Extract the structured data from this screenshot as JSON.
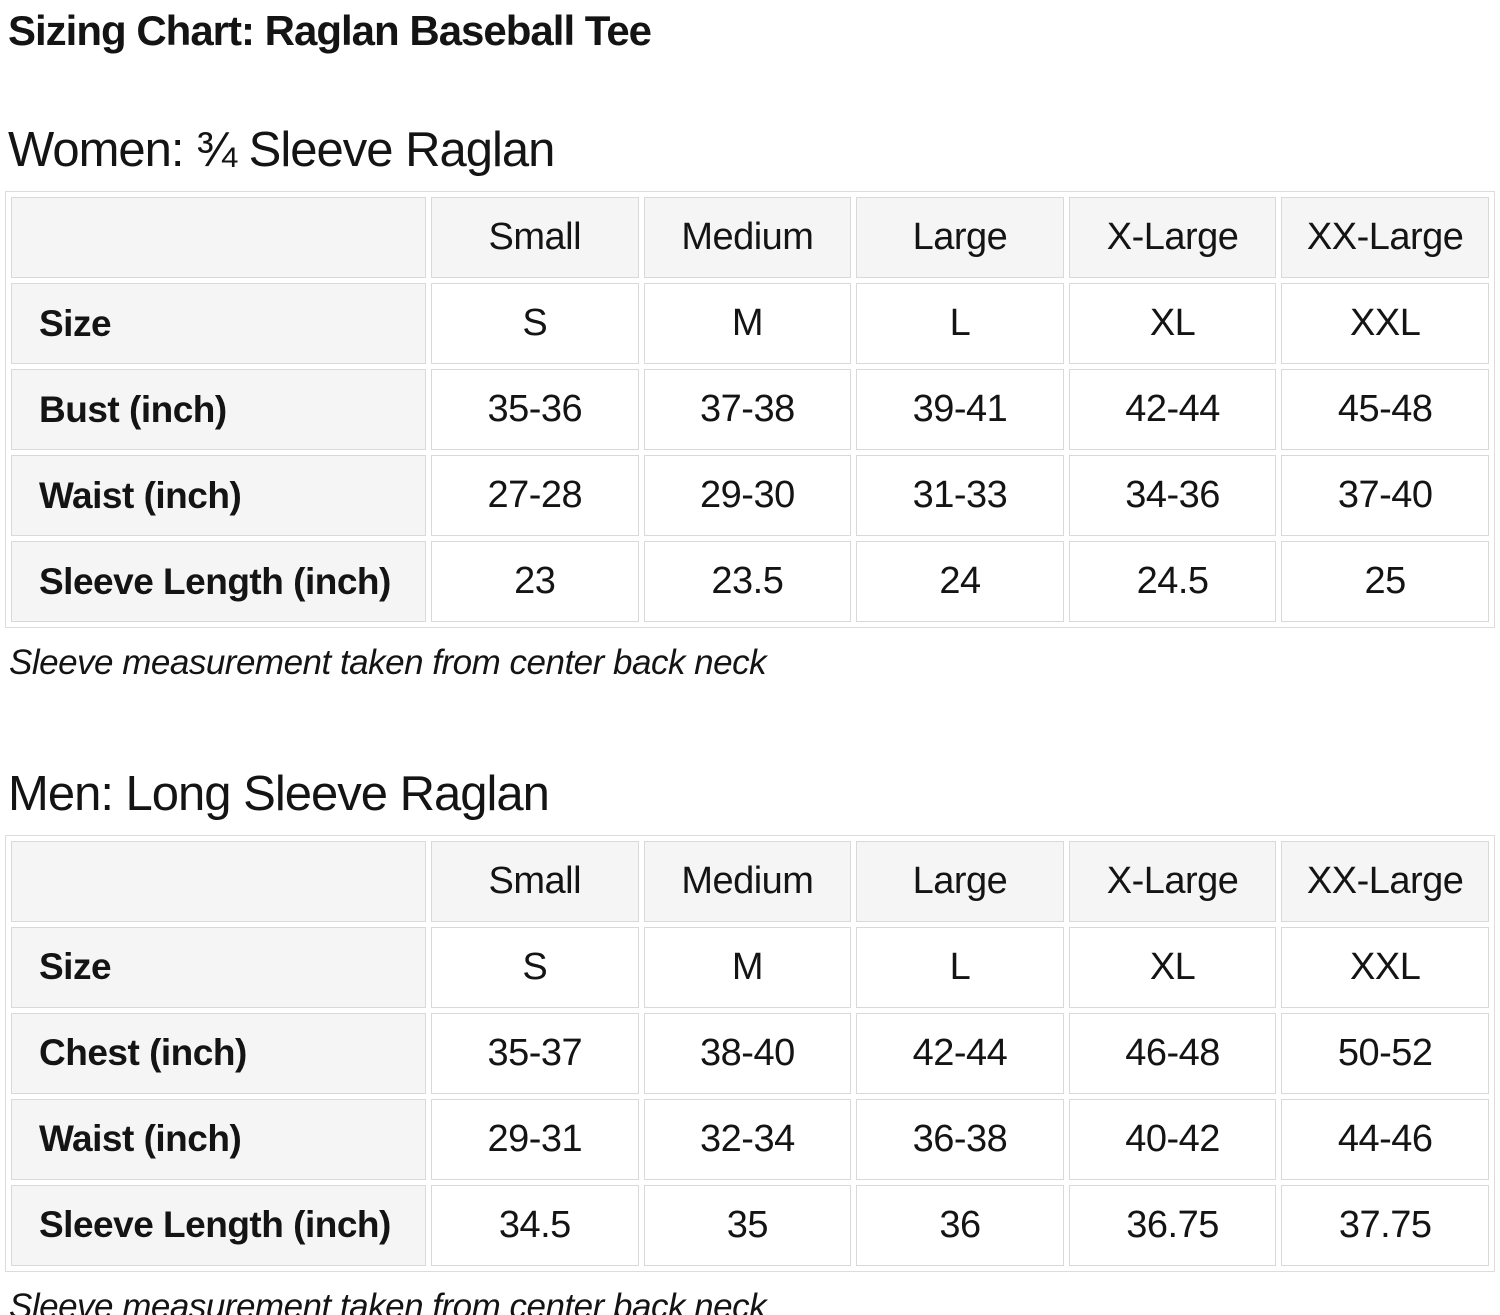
{
  "page": {
    "title": "Sizing Chart: Raglan Baseball Tee"
  },
  "colors": {
    "page_bg": "#ffffff",
    "text": "#141414",
    "header_cell_bg": "#f6f5f5",
    "cell_border": "#d9d9d9"
  },
  "tables": [
    {
      "id": "women",
      "heading": "Women: ¾ Sleeve Raglan",
      "size_headers": [
        "Small",
        "Medium",
        "Large",
        "X-Large",
        "XX-Large"
      ],
      "rows": [
        {
          "label": "Size",
          "values": [
            "S",
            "M",
            "L",
            "XL",
            "XXL"
          ]
        },
        {
          "label": "Bust (inch)",
          "values": [
            "35-36",
            "37-38",
            "39-41",
            "42-44",
            "45-48"
          ]
        },
        {
          "label": "Waist (inch)",
          "values": [
            "27-28",
            "29-30",
            "31-33",
            "34-36",
            "37-40"
          ]
        },
        {
          "label": "Sleeve Length (inch)",
          "values": [
            "23",
            "23.5",
            "24",
            "24.5",
            "25"
          ]
        }
      ],
      "note": "Sleeve measurement taken from center back neck"
    },
    {
      "id": "men",
      "heading": "Men: Long Sleeve Raglan",
      "size_headers": [
        "Small",
        "Medium",
        "Large",
        "X-Large",
        "XX-Large"
      ],
      "rows": [
        {
          "label": "Size",
          "values": [
            "S",
            "M",
            "L",
            "XL",
            "XXL"
          ]
        },
        {
          "label": "Chest (inch)",
          "values": [
            "35-37",
            "38-40",
            "42-44",
            "46-48",
            "50-52"
          ]
        },
        {
          "label": "Waist (inch)",
          "values": [
            "29-31",
            "32-34",
            "36-38",
            "40-42",
            "44-46"
          ]
        },
        {
          "label": "Sleeve Length (inch)",
          "values": [
            "34.5",
            "35",
            "36",
            "36.75",
            "37.75"
          ]
        }
      ],
      "note": "Sleeve measurement taken from center back neck"
    }
  ]
}
